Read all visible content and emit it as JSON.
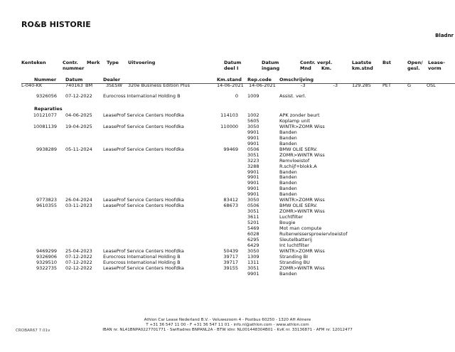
{
  "title": "RO&B HISTORIE",
  "bladnr": "Bladnr",
  "headers": {
    "kenteken": "Kenteken",
    "contr": "Contr.",
    "nummer": "nummer",
    "merk": "Merk",
    "type": "Type",
    "uitvoering": "Uitvoering",
    "datum_deel": "Datum",
    "deel_i": "deel I",
    "datum_ingang": "Datum",
    "ingang": "ingang",
    "contr_verpl": "Contr. verpl.",
    "mnd": "Mnd",
    "km": "Km.",
    "laatste": "Laatste",
    "kmstnd": "km.stnd",
    "bst": "Bst",
    "open": "Open/",
    "gesl": "gesl.",
    "lease": "Lease-",
    "vorm": "vorm"
  },
  "subheaders": {
    "nummer": "Nummer",
    "datum": "Datum",
    "dealer": "Dealer",
    "kmstand": "Km.stand",
    "repcode": "Rep.code",
    "omschrijving": "Omschrijving"
  },
  "vehicle": {
    "kenteken": "L-040-KK",
    "contract": "740163",
    "merk": "BM",
    "type": "3SESW",
    "uitvoering": "320e Business Edition Plus",
    "datum_deel": "14-06-2021",
    "datum_ingang": "14-06-2021",
    "mnd": "-3",
    "km": "-3",
    "laatste_km": "129.285",
    "bst": "PET",
    "open": "G",
    "lease": "OSL"
  },
  "assist": {
    "nummer": "9326056",
    "datum": "07-12-2022",
    "dealer": "Eurocross International Holding B",
    "km": "0",
    "code": "1009",
    "desc": "Assist. verl."
  },
  "reparaties_label": "Reparaties",
  "repairs": [
    {
      "nummer": "10121077",
      "datum": "04-06-2025",
      "dealer": "LeaseProf Service Centers Hoofdka",
      "km": "114103",
      "lines": [
        [
          "1002",
          "APK zonder beurt"
        ],
        [
          "5605",
          "Koplamp unit"
        ]
      ]
    },
    {
      "nummer": "10081139",
      "datum": "19-04-2025",
      "dealer": "LeaseProf Service Centers Hoofdka",
      "km": "110000",
      "lines": [
        [
          "3050",
          "WINTR>ZOMR Wiss"
        ],
        [
          "9901",
          "Banden"
        ],
        [
          "9901",
          "Banden"
        ],
        [
          "9901",
          "Banden"
        ]
      ]
    },
    {
      "nummer": "9938289",
      "datum": "05-11-2024",
      "dealer": "LeaseProf Service Centers Hoofdka",
      "km": "99469",
      "lines": [
        [
          "0506",
          "BMW OLIE SERV."
        ],
        [
          "3051",
          "ZOMR>WINTR Wiss"
        ],
        [
          "3223",
          "Remvloeistof"
        ],
        [
          "3288",
          "R.schijf+blokk.A"
        ],
        [
          "9901",
          "Banden"
        ],
        [
          "9901",
          "Banden"
        ],
        [
          "9901",
          "Banden"
        ],
        [
          "9901",
          "Banden"
        ],
        [
          "9901",
          "Banden"
        ]
      ]
    },
    {
      "nummer": "9773823",
      "datum": "26-04-2024",
      "dealer": "LeaseProf Service Centers Hoofdka",
      "km": "83412",
      "lines": [
        [
          "3050",
          "WINTR>ZOMR Wiss"
        ]
      ]
    },
    {
      "nummer": "9610355",
      "datum": "03-11-2023",
      "dealer": "LeaseProf Service Centers Hoofdka",
      "km": "68673",
      "lines": [
        [
          "0506",
          "BMW OLIE SERV."
        ],
        [
          "3051",
          "ZOMR>WINTR Wiss"
        ],
        [
          "3611",
          "Luchtfilter"
        ],
        [
          "5201",
          "Bougie"
        ],
        [
          "5469",
          "Mot man compute"
        ],
        [
          "6028",
          "Ruitenwissersproeiervloeistof"
        ],
        [
          "6295",
          "Sleutelbatterij"
        ],
        [
          "6429",
          "Int luchtfilter"
        ]
      ]
    },
    {
      "nummer": "9469299",
      "datum": "25-04-2023",
      "dealer": "LeaseProf Service Centers Hoofdka",
      "km": "50439",
      "lines": [
        [
          "3050",
          "WINTR>ZOMR Wiss"
        ]
      ]
    },
    {
      "nummer": "9326906",
      "datum": "07-12-2022",
      "dealer": "Eurocross International Holding B",
      "km": "39717",
      "lines": [
        [
          "1309",
          "Stranding BI"
        ]
      ]
    },
    {
      "nummer": "9329510",
      "datum": "07-12-2022",
      "dealer": "Eurocross International Holding B",
      "km": "39717",
      "lines": [
        [
          "1311",
          "Stranding BU"
        ]
      ]
    },
    {
      "nummer": "9322735",
      "datum": "02-12-2022",
      "dealer": "LeaseProf Service Centers Hoofdka",
      "km": "39155",
      "lines": [
        [
          "3051",
          "ZOMR>WINTR Wiss"
        ],
        [
          "9901",
          "Banden"
        ]
      ]
    }
  ],
  "footer": {
    "version": "CROBAR67 7.01v",
    "line1": "Athlon Car Lease Nederland B.V. - Veluwezoom 4 - Postbus 60250 - 1320 AH  Almere",
    "line2": "T +31 36 547 11 00 - F +31 36 547 11 01 - info.nl@athlon.com - www.athlon.com",
    "line3": "IBAN nr. NL41BNPA0227701771 - Swiftadres BNPANL2A - BTW idnr. NL001448304B01 - KvK nr. 33136871 - AFM nr. 12012477"
  }
}
